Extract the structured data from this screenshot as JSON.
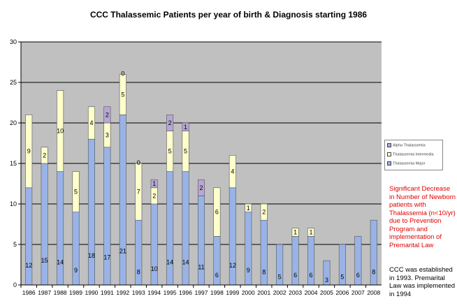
{
  "chart_data": {
    "type": "bar",
    "stacked": true,
    "title": "CCC Thalassemic Patients per year of birth & Diagnosis  starting 1986",
    "categories": [
      "1986",
      "1987",
      "1988",
      "1989",
      "1990",
      "1991",
      "1992",
      "1993",
      "1994",
      "1995",
      "1996",
      "1997",
      "1998",
      "1999",
      "2000",
      "2001",
      "2002",
      "2003",
      "2004",
      "2005",
      "2006",
      "2007",
      "2008"
    ],
    "ylim": [
      0,
      30
    ],
    "yticks": [
      "0",
      "5",
      "10",
      "15",
      "20",
      "25",
      "30"
    ],
    "grid": true,
    "legend_position": "right",
    "series": [
      {
        "name": "Thalassemia Major",
        "color": "#99b3e6",
        "values": [
          12,
          15,
          14,
          9,
          18,
          17,
          21,
          8,
          10,
          14,
          14,
          11,
          6,
          12,
          9,
          8,
          5,
          6,
          6,
          3,
          5,
          6,
          8
        ],
        "labels": [
          "12",
          "15",
          "14",
          "9",
          "18",
          "17",
          "21",
          "8",
          "10",
          "14",
          "14",
          "11",
          "6",
          "12",
          "9",
          "8",
          "5",
          "6",
          "6",
          "3",
          "5",
          "6",
          "8"
        ]
      },
      {
        "name": "Thalassemia Intermedia",
        "color": "#ffffcc",
        "values": [
          9,
          2,
          10,
          5,
          4,
          3,
          5,
          7,
          2,
          5,
          5,
          0,
          6,
          4,
          1,
          2,
          0,
          1,
          1,
          0,
          0,
          0,
          0
        ],
        "labels": [
          "9",
          "2",
          "10",
          "5",
          "4",
          "3",
          "5",
          "7",
          "2",
          "5",
          "5",
          "",
          "6",
          "4",
          "1",
          "2",
          "",
          "1",
          "1",
          "",
          "",
          "",
          ""
        ]
      },
      {
        "name": "Alpha Thalassemia",
        "color": "#b8a6d6",
        "values": [
          0,
          0,
          0,
          0,
          0,
          2,
          0,
          0,
          1,
          2,
          1,
          2,
          0,
          0,
          0,
          0,
          0,
          0,
          0,
          0,
          0,
          0,
          0
        ],
        "labels": [
          "",
          "",
          "",
          "",
          "",
          "2",
          "0",
          "0",
          "1",
          "2",
          "1",
          "2",
          "",
          "",
          "",
          "",
          "",
          "",
          "",
          "",
          "",
          "",
          ""
        ]
      }
    ]
  },
  "annotations": {
    "red_note": "Significant Decrease in Number of Newborn patients with Thalassemia (n<10/yr) due to Prevention Program and implementation of Premarital Law",
    "black_note": "CCC was established in 1993. Premarital Law was implemented in 1994"
  }
}
